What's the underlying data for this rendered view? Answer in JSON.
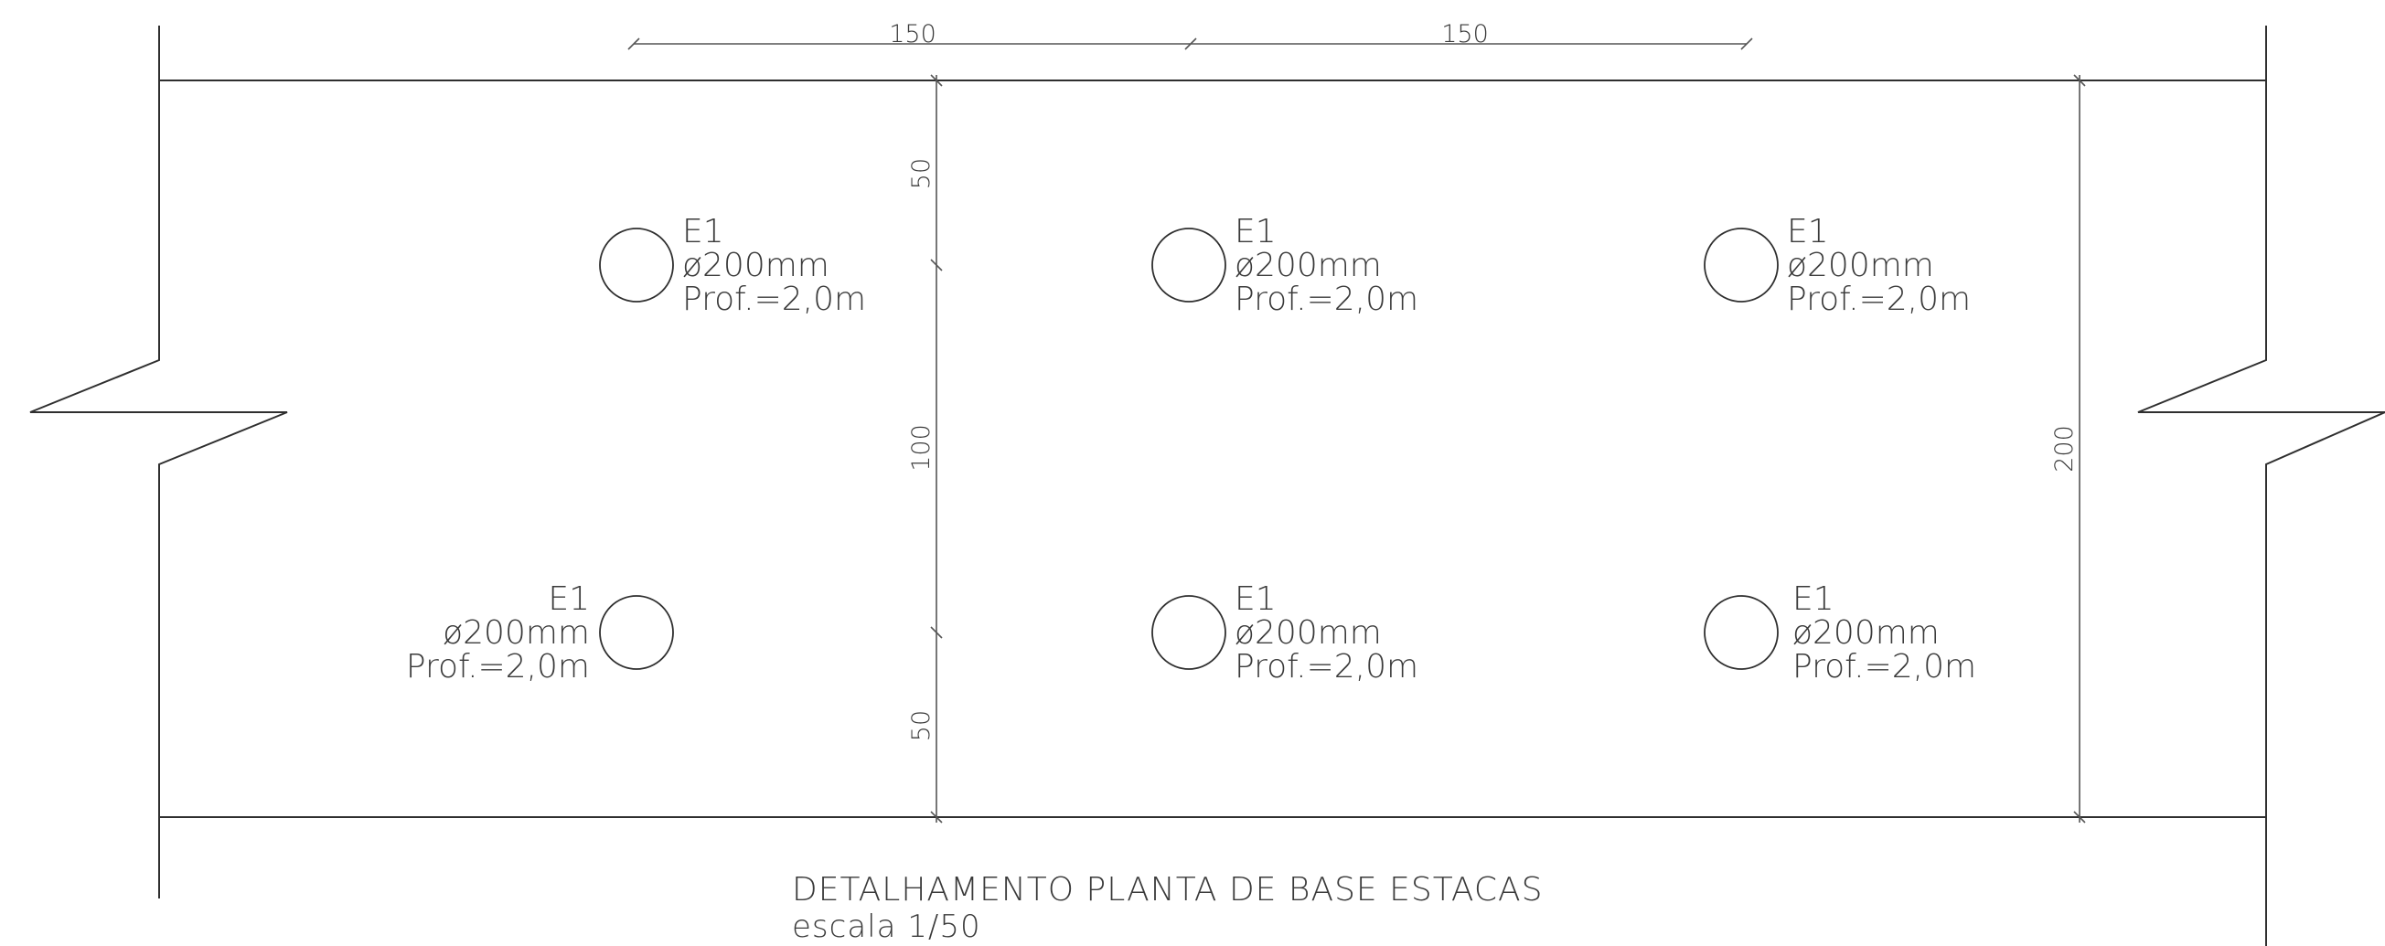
{
  "dimensions": {
    "top_left": "150",
    "top_right": "150",
    "vertical_top": "50",
    "vertical_middle": "100",
    "vertical_bottom": "50",
    "overall_height": "200"
  },
  "piles": [
    {
      "id": "E1",
      "diameter": "ø200mm",
      "depth": "Prof.=2,0m"
    },
    {
      "id": "E1",
      "diameter": "ø200mm",
      "depth": "Prof.=2,0m"
    },
    {
      "id": "E1",
      "diameter": "ø200mm",
      "depth": "Prof.=2,0m"
    },
    {
      "id": "E1",
      "diameter": "ø200mm",
      "depth": "Prof.=2,0m"
    },
    {
      "id": "E1",
      "diameter": "ø200mm",
      "depth": "Prof.=2,0m"
    },
    {
      "id": "E1",
      "diameter": "ø200mm",
      "depth": "Prof.=2,0m"
    }
  ],
  "title": "DETALHAMENTO PLANTA DE BASE ESTACAS",
  "scale": "escala 1/50",
  "colors": {
    "background": "#ffffff",
    "line": "#2f2f2f",
    "text": "#3a3a3a"
  }
}
